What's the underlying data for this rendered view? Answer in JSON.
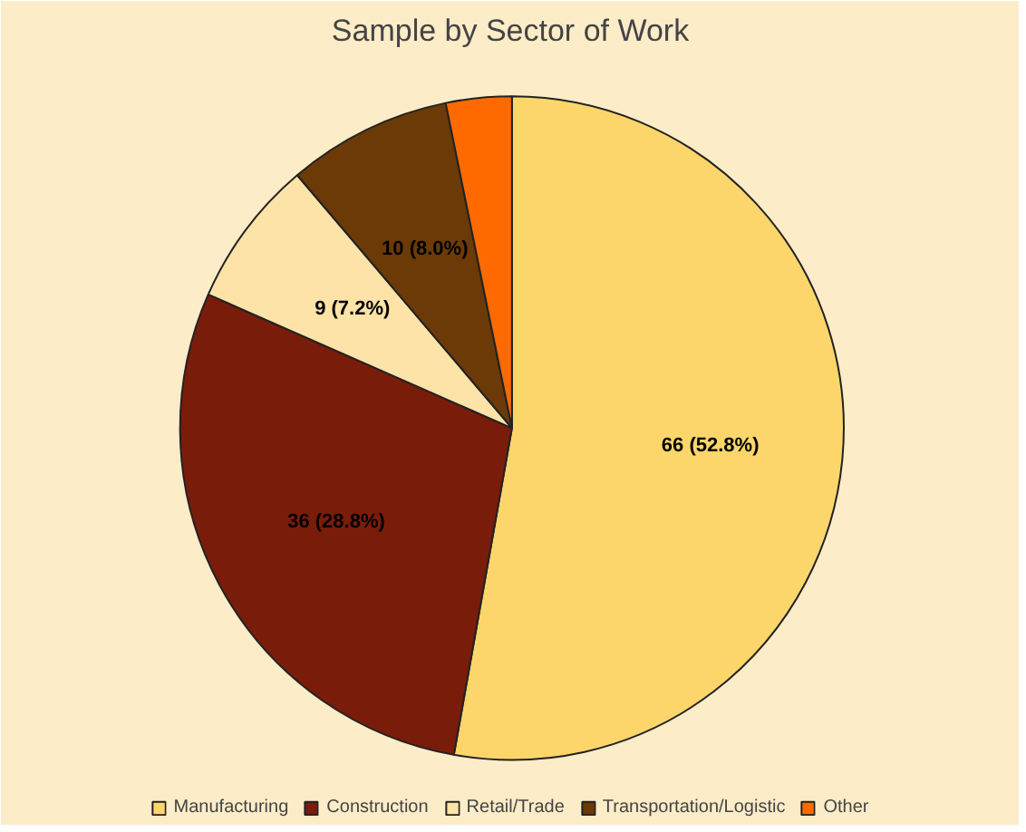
{
  "chart_data": {
    "type": "pie",
    "title": "Sample by Sector of Work",
    "categories": [
      "Manufacturing",
      "Construction",
      "Retail/Trade",
      "Transportation/Logistic",
      "Other"
    ],
    "values": [
      52.8,
      28.8,
      7.2,
      8.0,
      3.2
    ],
    "colors": [
      "#fdd66b",
      "#7a1c0a",
      "#fde3a7",
      "#6b3a06",
      "#ff6a00"
    ],
    "value_labels": [
      "66 (52.8%)",
      "36 (28.8%)",
      "9 (7.2%)",
      "10 (8.0%)",
      null
    ],
    "legend": "bottom"
  }
}
